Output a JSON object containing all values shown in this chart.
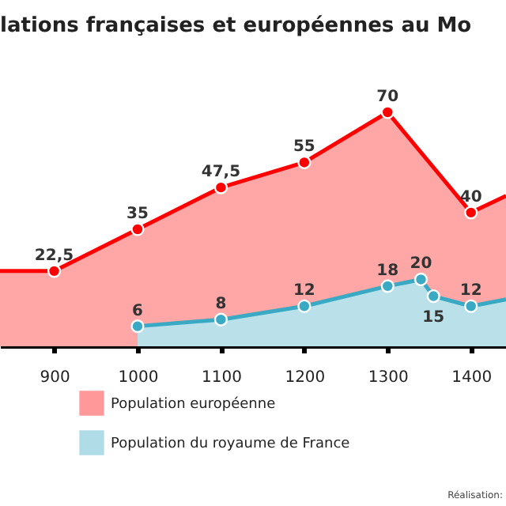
{
  "chart_data": {
    "type": "area",
    "title": "lations françaises et européennes au Mo",
    "xlim": [
      835,
      1442
    ],
    "xticks": [
      900,
      1000,
      1100,
      1200,
      1300,
      1400
    ],
    "series": [
      {
        "name": "Population européenne",
        "color": "#ff0000",
        "x": [
          835,
          900,
          1000,
          1100,
          1200,
          1300,
          1400,
          1442
        ],
        "values": [
          22.5,
          22.5,
          35,
          47.5,
          55,
          70,
          40,
          45
        ],
        "value_labels": [
          null,
          "22,5",
          "35",
          "47,5",
          "55",
          "70",
          "40",
          null
        ]
      },
      {
        "name": "Population du royaume de France",
        "color": "#3aa9c3",
        "x": [
          1000,
          1100,
          1200,
          1300,
          1340,
          1355,
          1400,
          1442
        ],
        "values": [
          6,
          8,
          12,
          18,
          20,
          15,
          12,
          14
        ],
        "value_labels": [
          "6",
          "8",
          "12",
          "18",
          "20",
          "15",
          "12",
          null
        ]
      }
    ],
    "legend": "bottom",
    "grid": false,
    "marker": "circle",
    "annotations": [
      "Réalisation:"
    ]
  }
}
